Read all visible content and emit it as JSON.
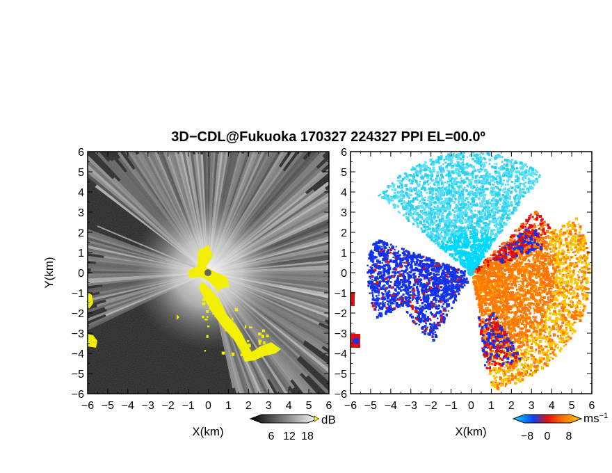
{
  "title": "3D−CDL@Fukuoka 170327 224327 PPI EL=00.0º",
  "chart_data": [
    {
      "type": "heatmap",
      "panel": "left",
      "variable_unit": "dB",
      "colormap": "grayscale",
      "xlabel": "X(km)",
      "ylabel": "Y(km)",
      "xlim": [
        -6,
        6
      ],
      "ylim": [
        -6,
        6
      ],
      "xticks": [
        "−6",
        "−5",
        "−4",
        "−3",
        "−2",
        "−1",
        "0",
        "1",
        "2",
        "3",
        "4",
        "5",
        "6"
      ],
      "yticks": [
        "6",
        "5",
        "4",
        "3",
        "2",
        "1",
        "0",
        "−1",
        "−2",
        "−3",
        "−4",
        "−5",
        "−6"
      ],
      "colorbar": {
        "ticks": [
          6,
          12,
          18
        ],
        "label": "dB",
        "highlight_color": "#ffff00"
      },
      "colors": {
        "background": "#1c1c1c",
        "highlight": "#f2f000"
      }
    },
    {
      "type": "heatmap",
      "panel": "right",
      "variable_unit": "ms⁻¹",
      "colormap": "cyan-blue-red-orange-yellow",
      "xlabel": "X(km)",
      "ylabel": "",
      "xlim": [
        -6,
        6
      ],
      "ylim": [
        -6,
        6
      ],
      "xticks": [
        "−6",
        "−5",
        "−4",
        "−3",
        "−2",
        "−1",
        "0",
        "1",
        "2",
        "3",
        "4",
        "5",
        "6"
      ],
      "colorbar": {
        "ticks": [
          "−8",
          "0",
          "8"
        ],
        "label": "ms",
        "label_exp": "−1"
      },
      "colors": {
        "cyan": "#22ccee",
        "blue": "#1133ee",
        "red": "#e01010",
        "orange": "#ff7700",
        "yellow": "#ffc400"
      }
    }
  ]
}
